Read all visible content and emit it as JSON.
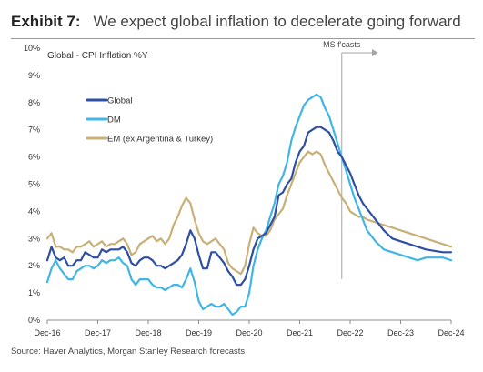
{
  "header": {
    "exhibit": "Exhibit 7:",
    "title": "We expect global inflation to decelerate going forward"
  },
  "source": "Source: Haver Analytics, Morgan Stanley Research forecasts",
  "chart_data": {
    "type": "line",
    "title": "Global - CPI Inflation %Y",
    "xlabel": "",
    "ylabel": "",
    "x_ticks": [
      "Dec-16",
      "Dec-17",
      "Dec-18",
      "Dec-19",
      "Dec-20",
      "Dec-21",
      "Dec-22",
      "Dec-23",
      "Dec-24"
    ],
    "y_ticks": [
      "0%",
      "1%",
      "2%",
      "3%",
      "4%",
      "5%",
      "6%",
      "7%",
      "8%",
      "9%",
      "10%"
    ],
    "ylim": [
      0,
      10
    ],
    "x_range_months": [
      0,
      96
    ],
    "grid": false,
    "legend_position": "top-left",
    "annotation": {
      "label": "MS f'casts",
      "month": 70
    },
    "colors": {
      "Global": "#2f4fa3",
      "DM": "#41b6e6",
      "EM (ex Argentina & Turkey)": "#c8b176"
    },
    "series": [
      {
        "name": "Global",
        "x": [
          0,
          1,
          2,
          3,
          4,
          5,
          6,
          7,
          8,
          9,
          10,
          11,
          12,
          13,
          14,
          15,
          16,
          17,
          18,
          19,
          20,
          21,
          22,
          23,
          24,
          25,
          26,
          27,
          28,
          29,
          30,
          31,
          32,
          33,
          34,
          35,
          36,
          37,
          38,
          39,
          40,
          41,
          42,
          43,
          44,
          45,
          46,
          47,
          48,
          49,
          50,
          51,
          52,
          53,
          54,
          55,
          56,
          57,
          58,
          59,
          60,
          61,
          62,
          63,
          64,
          65,
          66,
          67,
          68,
          69,
          70,
          71,
          72,
          73,
          74,
          75,
          76,
          78,
          80,
          82,
          84,
          86,
          88,
          90,
          92,
          94,
          96
        ],
        "y": [
          2.2,
          2.7,
          2.3,
          2.2,
          2.3,
          2.0,
          2.0,
          2.2,
          2.2,
          2.5,
          2.4,
          2.3,
          2.3,
          2.6,
          2.5,
          2.6,
          2.6,
          2.6,
          2.7,
          2.5,
          2.1,
          2.0,
          2.2,
          2.3,
          2.3,
          2.2,
          2.0,
          2.0,
          1.9,
          2.0,
          2.1,
          2.2,
          2.4,
          2.8,
          3.3,
          3.0,
          2.4,
          1.9,
          1.9,
          2.5,
          2.5,
          2.3,
          2.1,
          1.8,
          1.6,
          1.3,
          1.3,
          1.5,
          2.0,
          2.6,
          3.0,
          3.1,
          3.2,
          3.5,
          3.8,
          4.6,
          4.7,
          5.0,
          5.2,
          5.8,
          6.2,
          6.4,
          6.9,
          7.0,
          7.1,
          7.1,
          7.0,
          6.9,
          6.6,
          6.2,
          6.0,
          5.7,
          5.4,
          5.0,
          4.6,
          4.3,
          4.1,
          3.7,
          3.3,
          3.0,
          2.9,
          2.8,
          2.7,
          2.6,
          2.55,
          2.5,
          2.5
        ]
      },
      {
        "name": "DM",
        "x": [
          0,
          1,
          2,
          3,
          4,
          5,
          6,
          7,
          8,
          9,
          10,
          11,
          12,
          13,
          14,
          15,
          16,
          17,
          18,
          19,
          20,
          21,
          22,
          23,
          24,
          25,
          26,
          27,
          28,
          29,
          30,
          31,
          32,
          33,
          34,
          35,
          36,
          37,
          38,
          39,
          40,
          41,
          42,
          43,
          44,
          45,
          46,
          47,
          48,
          49,
          50,
          51,
          52,
          53,
          54,
          55,
          56,
          57,
          58,
          59,
          60,
          61,
          62,
          63,
          64,
          65,
          66,
          67,
          68,
          69,
          70,
          71,
          72,
          73,
          74,
          75,
          76,
          78,
          80,
          82,
          84,
          86,
          88,
          90,
          92,
          94,
          96
        ],
        "y": [
          1.4,
          1.9,
          2.2,
          1.9,
          1.7,
          1.5,
          1.5,
          1.8,
          1.9,
          2.0,
          2.0,
          1.9,
          2.0,
          2.2,
          2.1,
          2.2,
          2.2,
          2.3,
          2.1,
          2.0,
          1.5,
          1.3,
          1.5,
          1.5,
          1.5,
          1.3,
          1.2,
          1.2,
          1.1,
          1.2,
          1.3,
          1.3,
          1.2,
          1.5,
          1.9,
          1.4,
          0.7,
          0.4,
          0.5,
          0.6,
          0.5,
          0.5,
          0.6,
          0.4,
          0.2,
          0.3,
          0.5,
          0.5,
          1.0,
          2.0,
          2.6,
          3.0,
          3.3,
          3.8,
          4.3,
          5.0,
          5.3,
          5.8,
          6.6,
          7.1,
          7.5,
          7.9,
          8.1,
          8.2,
          8.3,
          8.2,
          7.8,
          7.5,
          7.0,
          6.5,
          6.0,
          5.5,
          5.0,
          4.5,
          4.1,
          3.7,
          3.3,
          2.9,
          2.6,
          2.5,
          2.4,
          2.3,
          2.2,
          2.3,
          2.3,
          2.3,
          2.2
        ]
      },
      {
        "name": "EM (ex Argentina & Turkey)",
        "x": [
          0,
          1,
          2,
          3,
          4,
          5,
          6,
          7,
          8,
          9,
          10,
          11,
          12,
          13,
          14,
          15,
          16,
          17,
          18,
          19,
          20,
          21,
          22,
          23,
          24,
          25,
          26,
          27,
          28,
          29,
          30,
          31,
          32,
          33,
          34,
          35,
          36,
          37,
          38,
          39,
          40,
          41,
          42,
          43,
          44,
          45,
          46,
          47,
          48,
          49,
          50,
          51,
          52,
          53,
          54,
          55,
          56,
          57,
          58,
          59,
          60,
          61,
          62,
          63,
          64,
          65,
          66,
          67,
          68,
          69,
          70,
          71,
          72,
          73,
          74,
          75,
          76,
          78,
          80,
          82,
          84,
          86,
          88,
          90,
          92,
          94,
          96
        ],
        "y": [
          3.0,
          3.2,
          2.7,
          2.7,
          2.6,
          2.6,
          2.5,
          2.7,
          2.7,
          2.8,
          2.9,
          2.7,
          2.8,
          2.9,
          2.7,
          2.8,
          2.8,
          2.9,
          3.0,
          2.8,
          2.4,
          2.5,
          2.8,
          2.9,
          3.0,
          3.1,
          2.9,
          3.0,
          2.8,
          3.0,
          3.5,
          3.8,
          4.2,
          4.5,
          4.3,
          3.7,
          3.2,
          2.9,
          2.8,
          2.9,
          3.0,
          2.8,
          2.6,
          2.1,
          1.9,
          1.8,
          1.7,
          2.0,
          2.8,
          3.4,
          3.2,
          3.1,
          3.1,
          3.3,
          3.7,
          3.9,
          4.1,
          4.6,
          5.0,
          5.4,
          5.8,
          6.0,
          6.2,
          6.1,
          6.2,
          6.1,
          5.7,
          5.4,
          5.1,
          4.8,
          4.5,
          4.3,
          4.0,
          3.9,
          3.8,
          3.8,
          3.7,
          3.6,
          3.5,
          3.4,
          3.3,
          3.2,
          3.1,
          3.0,
          2.9,
          2.8,
          2.7
        ]
      }
    ]
  }
}
